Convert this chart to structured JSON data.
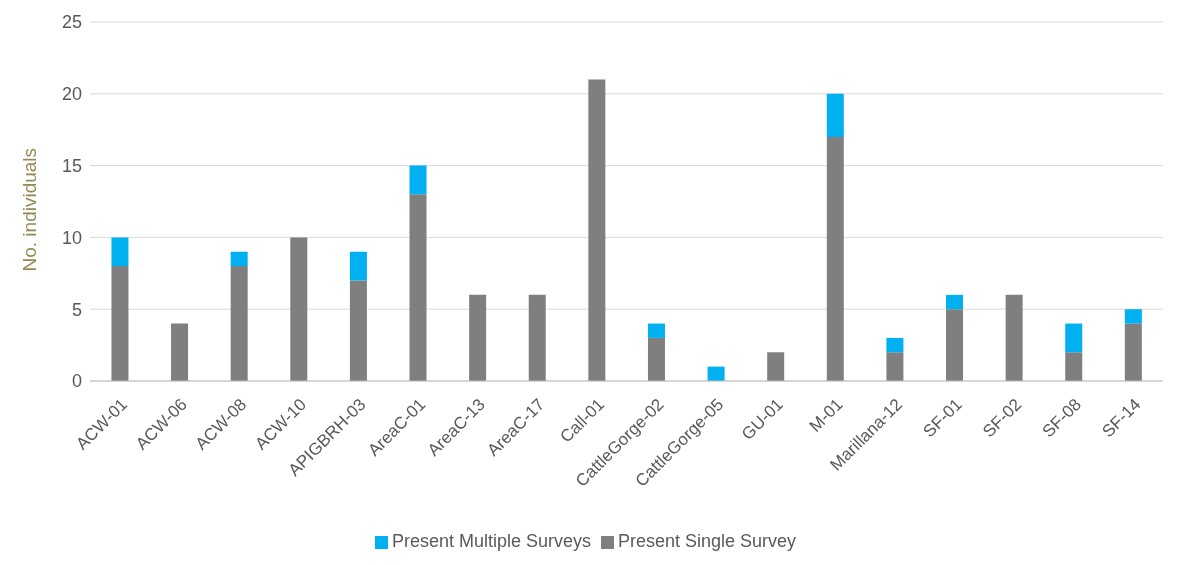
{
  "chart_data": {
    "type": "bar",
    "stacked": true,
    "ylabel": "No. individuals",
    "categories": [
      "ACW-01",
      "ACW-06",
      "ACW-08",
      "ACW-10",
      "APIGBRH-03",
      "AreaC-01",
      "AreaC-13",
      "AreaC-17",
      "Call-01",
      "CattleGorge-02",
      "CattleGorge-05",
      "GU-01",
      "M-01",
      "Marillana-12",
      "SF-01",
      "SF-02",
      "SF-08",
      "SF-14"
    ],
    "series": [
      {
        "name": "Present Single Survey",
        "color": "#7f7f7f",
        "values": [
          8,
          4,
          8,
          10,
          7,
          13,
          6,
          6,
          21,
          3,
          0,
          2,
          17,
          2,
          5,
          6,
          2,
          4
        ]
      },
      {
        "name": "Present Multiple Surveys",
        "color": "#00b0f0",
        "values": [
          2,
          0,
          1,
          0,
          2,
          2,
          0,
          0,
          0,
          1,
          1,
          0,
          3,
          1,
          1,
          0,
          2,
          1
        ]
      }
    ],
    "ylim": [
      0,
      25
    ],
    "yticks": [
      0,
      5,
      10,
      15,
      20,
      25
    ],
    "grid": "y",
    "legend": "bottom"
  }
}
